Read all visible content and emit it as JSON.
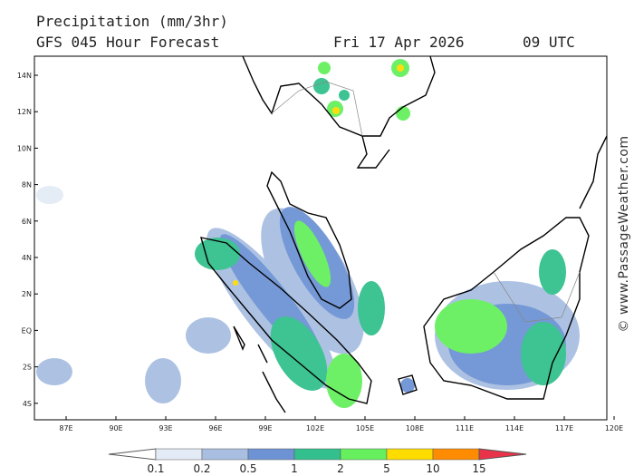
{
  "header": {
    "title": "Precipitation (mm/3hr)",
    "subtitle": "GFS 045 Hour Forecast",
    "date": "Fri 17 Apr 2026",
    "time": "09 UTC"
  },
  "map": {
    "lat_labels": [
      "14N",
      "12N",
      "10N",
      "8N",
      "6N",
      "4N",
      "2N",
      "EQ",
      "2S",
      "4S"
    ],
    "lon_labels": [
      "87E",
      "90E",
      "93E",
      "96E",
      "99E",
      "102E",
      "105E",
      "108E",
      "111E",
      "114E",
      "117E",
      "120E"
    ]
  },
  "legend": {
    "levels": [
      0.1,
      0.2,
      0.5,
      1,
      2,
      5,
      10,
      15
    ],
    "colors": [
      "#ffffff",
      "#e3ebf6",
      "#a9bfe2",
      "#6e93d4",
      "#34c08e",
      "#66f05e",
      "#ffdc00",
      "#ff8c00",
      "#e8334a"
    ]
  },
  "watermark": "© www.PassageWeather.com"
}
